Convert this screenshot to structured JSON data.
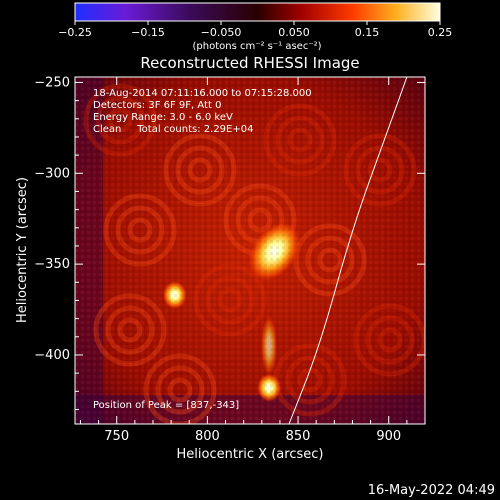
{
  "chart_data": {
    "type": "heatmap",
    "title": "Reconstructed RHESSI Image",
    "xlabel": "Heliocentric X (arcsec)",
    "ylabel": "Heliocentric Y (arcsec)",
    "xlim": [
      727,
      920
    ],
    "ylim": [
      -438,
      -247
    ],
    "xticks": [
      750,
      800,
      850,
      900
    ],
    "yticks": [
      -250,
      -300,
      -350,
      -400
    ],
    "colorbar": {
      "range": [
        -0.25,
        0.25
      ],
      "ticks": [
        "−0.25",
        "−0.15",
        "−0.050",
        "0.050",
        "0.15",
        "0.25"
      ],
      "units_label": "(photons cm⁻² s⁻¹ asec⁻²)",
      "colormap": "rainbow-to-hot (blue-purple-red-yellow-white)"
    },
    "info": {
      "time": "18-Aug-2014 07:11:16.000 to 07:15:28.000",
      "detectors": "Detectors: 3F 6F 9F, Att 0",
      "energy": "Energy Range: 3.0 - 6.0 keV",
      "clean": "Clean     Total counts: 2.29E+04",
      "peak": "Position of Peak = [837,-343]"
    },
    "sources": [
      {
        "x": 837,
        "y": -343,
        "value": 0.25
      },
      {
        "x": 782,
        "y": -367,
        "value": 0.17
      },
      {
        "x": 834,
        "y": -418,
        "value": 0.16
      }
    ],
    "limb_curve": [
      [
        845,
        -438
      ],
      [
        862,
        -395
      ],
      [
        880,
        -330
      ],
      [
        900,
        -275
      ],
      [
        910,
        -247
      ]
    ],
    "timestamp": "16-May-2022 04:49"
  }
}
